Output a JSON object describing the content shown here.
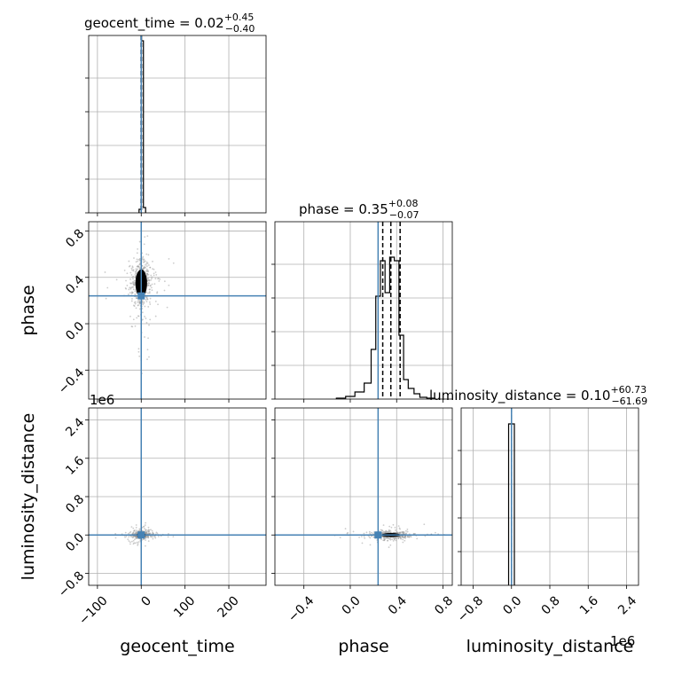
{
  "chart_data": {
    "type": "corner",
    "parameters": [
      {
        "key": "geocent_time",
        "axis_label": "geocent_time",
        "title_prefix": "geocent_time = 0.02",
        "title_sup": "+0.45",
        "title_sub": "−0.40",
        "range": [
          -120,
          285
        ],
        "ticks": [
          -100,
          0,
          100,
          200
        ],
        "tick_labels": [
          "−100",
          "0",
          "100",
          "200"
        ],
        "median": 0.02,
        "quantiles": [
          -0.38,
          0.47
        ],
        "truth": 0,
        "hist": {
          "edges": [
            -5,
            0,
            5,
            10
          ],
          "heights": [
            0.02,
            0.97,
            0.03
          ]
        }
      },
      {
        "key": "phase",
        "axis_label": "phase",
        "title_prefix": "phase = 0.35",
        "title_sup": "+0.08",
        "title_sub": "−0.07",
        "range": [
          -0.65,
          0.88
        ],
        "ticks": [
          -0.4,
          0.0,
          0.4,
          0.8
        ],
        "tick_labels": [
          "−0.4",
          "0.0",
          "0.4",
          "0.8"
        ],
        "median": 0.35,
        "quantiles": [
          0.28,
          0.43
        ],
        "truth": 0.24,
        "hist": {
          "edges": [
            -0.12,
            -0.04,
            0.04,
            0.12,
            0.18,
            0.22,
            0.26,
            0.3,
            0.34,
            0.38,
            0.42,
            0.46,
            0.5,
            0.55,
            0.6,
            0.66,
            0.72
          ],
          "heights": [
            0.005,
            0.015,
            0.04,
            0.09,
            0.28,
            0.58,
            0.78,
            0.6,
            0.8,
            0.78,
            0.36,
            0.11,
            0.06,
            0.03,
            0.01,
            0.005
          ]
        }
      },
      {
        "key": "luminosity_distance",
        "axis_label": "luminosity_distance",
        "title_prefix": "luminosity_distance = 0.10",
        "title_sup": "+60.73",
        "title_sub": "−61.69",
        "scale_label": "1e6",
        "range": [
          -1.05,
          2.65
        ],
        "ticks": [
          -0.8,
          0.0,
          0.8,
          1.6,
          2.4
        ],
        "tick_labels": [
          "−0.8",
          "0.0",
          "0.8",
          "1.6",
          "2.4"
        ],
        "median": 0.0,
        "quantiles": [
          -6e-05,
          6e-05
        ],
        "truth": 0.0,
        "hist": {
          "edges": [
            -0.06,
            0.0,
            0.06
          ],
          "heights": [
            0.91,
            0.91
          ]
        }
      }
    ],
    "grid": true,
    "truth_color": "#4682b4",
    "hist_color": "#000000"
  }
}
